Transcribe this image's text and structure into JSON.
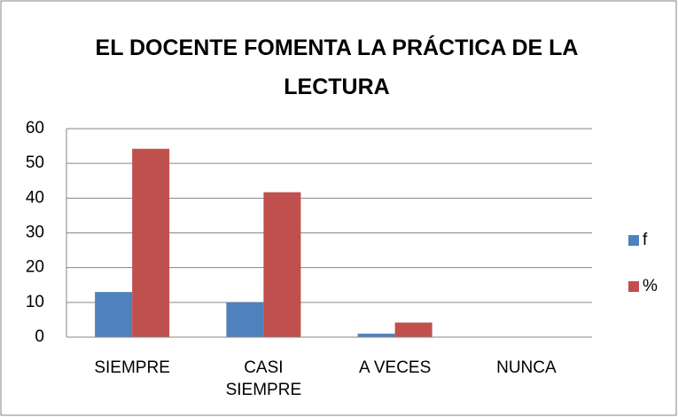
{
  "chart_data": {
    "type": "bar",
    "title": "EL DOCENTE FOMENTA LA PRÁCTICA DE LA LECTURA",
    "categories": [
      "SIEMPRE",
      "CASI SIEMPRE",
      "A VECES",
      "NUNCA"
    ],
    "series": [
      {
        "name": "f",
        "color": "#4f81bd",
        "values": [
          13,
          10,
          1,
          0
        ]
      },
      {
        "name": "%",
        "color": "#c0504d",
        "values": [
          54.2,
          41.7,
          4.2,
          0
        ]
      }
    ],
    "ylim": [
      0,
      60
    ],
    "yticks": [
      0,
      10,
      20,
      30,
      40,
      50,
      60
    ],
    "grid": true,
    "legend": "right"
  }
}
